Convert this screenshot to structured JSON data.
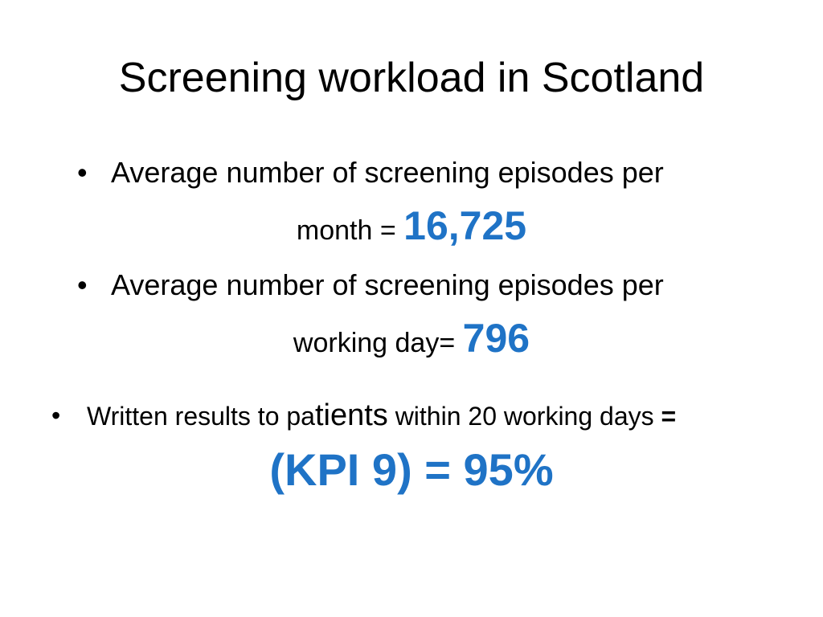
{
  "slide": {
    "title": "Screening workload in Scotland",
    "bullet_char": "•",
    "items": [
      {
        "text": "Average number of screening episodes per",
        "continuation": "month = ",
        "value": "16,725"
      },
      {
        "text": "Average number of screening episodes per",
        "continuation": "working day= ",
        "value": "796"
      },
      {
        "text_part1": "Written results to pa",
        "text_part2": "tients",
        "text_part3": " within 20 working days ",
        "text_part4": "=",
        "value": "(KPI 9) = 95%"
      }
    ],
    "colors": {
      "accent": "#1f73c6",
      "text": "#000000",
      "background": "#ffffff"
    }
  }
}
